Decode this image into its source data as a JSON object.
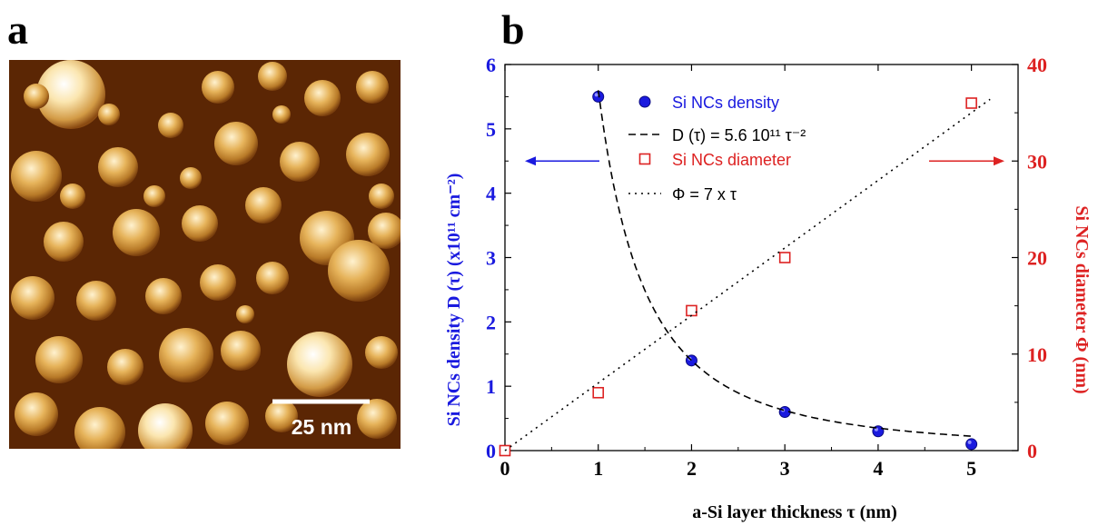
{
  "panels": {
    "a": "a",
    "b": "b"
  },
  "afm_image": {
    "scale_bar_label": "25 nm",
    "colors": {
      "dark": "#5b2604",
      "mid": "#b87a28",
      "light": "#fff2cf"
    }
  },
  "chart_data": {
    "type": "scatter",
    "xlabel": "a-Si layer thickness τ (nm)",
    "ylabel_left": "Si NCs density D (τ) (x10¹¹ cm⁻²)",
    "ylabel_right": "Si NCs diameter Φ (nm)",
    "xlim": [
      0,
      5.5
    ],
    "ylim_left": [
      0,
      6
    ],
    "ylim_right": [
      0,
      40
    ],
    "x_ticks": [
      "0",
      "1",
      "2",
      "3",
      "4",
      "5"
    ],
    "y_ticks_left": [
      "0",
      "1",
      "2",
      "3",
      "4",
      "5",
      "6"
    ],
    "y_ticks_right": [
      "0",
      "10",
      "20",
      "30",
      "40"
    ],
    "series": [
      {
        "name": "Si NCs density",
        "axis": "left",
        "marker": "filled-circle",
        "color": "#1a1adf",
        "x": [
          1,
          2,
          3,
          4,
          5
        ],
        "y": [
          5.5,
          1.4,
          0.6,
          0.3,
          0.1
        ]
      },
      {
        "name": "D (τ) = 5.6 10¹¹ τ⁻²",
        "axis": "left",
        "style": "dashed",
        "color": "#000000",
        "fit": {
          "coefficient": 5.6,
          "exponent": -2,
          "x_range": [
            1,
            5
          ]
        }
      },
      {
        "name": "Si NCs diameter",
        "axis": "right",
        "marker": "open-square",
        "color": "#dd2222",
        "x": [
          0,
          1,
          2,
          3,
          5
        ],
        "y": [
          0,
          6,
          14.5,
          20,
          36
        ]
      },
      {
        "name": "Φ = 7 x τ",
        "axis": "right",
        "style": "dotted",
        "color": "#000000",
        "fit": {
          "slope": 7,
          "x_range": [
            0,
            5.2
          ]
        }
      }
    ],
    "legend_position": "top-center",
    "arrows": [
      {
        "direction": "left",
        "axis": "left",
        "color": "#1a1adf"
      },
      {
        "direction": "right",
        "axis": "right",
        "color": "#dd2222"
      }
    ]
  }
}
